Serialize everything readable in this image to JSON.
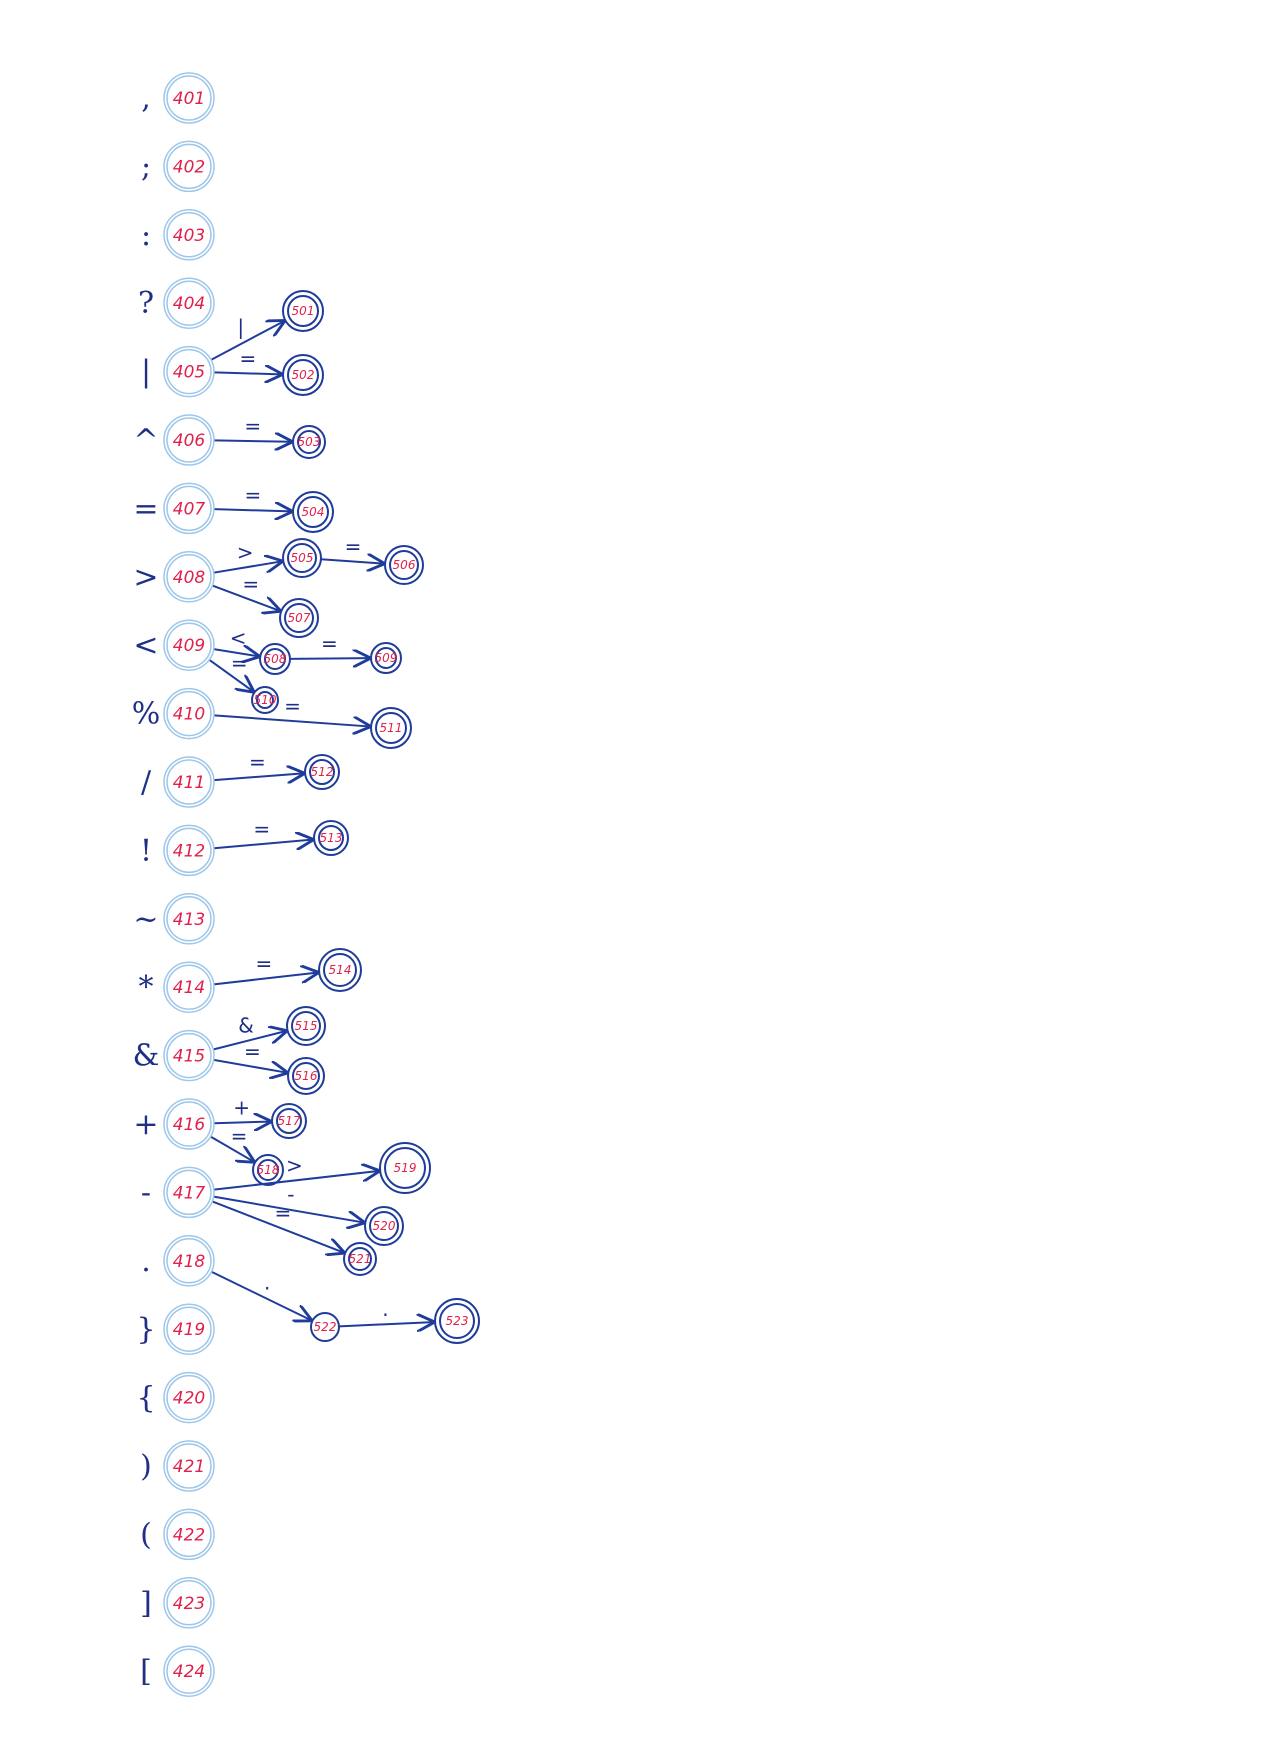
{
  "start_states": [
    {
      "symbol": ",",
      "id": "401"
    },
    {
      "symbol": ";",
      "id": "402"
    },
    {
      "symbol": ":",
      "id": "403"
    },
    {
      "symbol": "?",
      "id": "404"
    },
    {
      "symbol": "|",
      "id": "405"
    },
    {
      "symbol": "^",
      "id": "406"
    },
    {
      "symbol": "=",
      "id": "407"
    },
    {
      "symbol": ">",
      "id": "408"
    },
    {
      "symbol": "<",
      "id": "409"
    },
    {
      "symbol": "%",
      "id": "410"
    },
    {
      "symbol": "/",
      "id": "411"
    },
    {
      "symbol": "!",
      "id": "412"
    },
    {
      "symbol": "~",
      "id": "413"
    },
    {
      "symbol": "*",
      "id": "414"
    },
    {
      "symbol": "&",
      "id": "415"
    },
    {
      "symbol": "+",
      "id": "416"
    },
    {
      "symbol": "-",
      "id": "417"
    },
    {
      "symbol": ".",
      "id": "418"
    },
    {
      "symbol": "}",
      "id": "419"
    },
    {
      "symbol": "{",
      "id": "420"
    },
    {
      "symbol": ")",
      "id": "421"
    },
    {
      "symbol": "(",
      "id": "422"
    },
    {
      "symbol": "]",
      "id": "423"
    },
    {
      "symbol": "[",
      "id": "424"
    }
  ],
  "states": [
    {
      "id": "501",
      "accept": true
    },
    {
      "id": "502",
      "accept": true
    },
    {
      "id": "503",
      "accept": true
    },
    {
      "id": "504",
      "accept": true
    },
    {
      "id": "505",
      "accept": true
    },
    {
      "id": "506",
      "accept": true
    },
    {
      "id": "507",
      "accept": true
    },
    {
      "id": "508",
      "accept": true
    },
    {
      "id": "509",
      "accept": true
    },
    {
      "id": "510",
      "accept": true
    },
    {
      "id": "511",
      "accept": true
    },
    {
      "id": "512",
      "accept": true
    },
    {
      "id": "513",
      "accept": true
    },
    {
      "id": "514",
      "accept": true
    },
    {
      "id": "515",
      "accept": true
    },
    {
      "id": "516",
      "accept": true
    },
    {
      "id": "517",
      "accept": true
    },
    {
      "id": "518",
      "accept": true
    },
    {
      "id": "519",
      "accept": true
    },
    {
      "id": "520",
      "accept": true
    },
    {
      "id": "521",
      "accept": true
    },
    {
      "id": "522",
      "accept": false
    },
    {
      "id": "523",
      "accept": true
    }
  ],
  "transitions": [
    {
      "from": "405",
      "to": "501",
      "label": "|"
    },
    {
      "from": "405",
      "to": "502",
      "label": "="
    },
    {
      "from": "406",
      "to": "503",
      "label": "="
    },
    {
      "from": "407",
      "to": "504",
      "label": "="
    },
    {
      "from": "408",
      "to": "505",
      "label": ">"
    },
    {
      "from": "505",
      "to": "506",
      "label": "="
    },
    {
      "from": "408",
      "to": "507",
      "label": "="
    },
    {
      "from": "409",
      "to": "508",
      "label": "<"
    },
    {
      "from": "508",
      "to": "509",
      "label": "="
    },
    {
      "from": "409",
      "to": "510",
      "label": "="
    },
    {
      "from": "410",
      "to": "511",
      "label": "="
    },
    {
      "from": "411",
      "to": "512",
      "label": "="
    },
    {
      "from": "412",
      "to": "513",
      "label": "="
    },
    {
      "from": "414",
      "to": "514",
      "label": "="
    },
    {
      "from": "415",
      "to": "515",
      "label": "&"
    },
    {
      "from": "415",
      "to": "516",
      "label": "="
    },
    {
      "from": "416",
      "to": "517",
      "label": "+"
    },
    {
      "from": "416",
      "to": "518",
      "label": "="
    },
    {
      "from": "417",
      "to": "519",
      "label": ">"
    },
    {
      "from": "417",
      "to": "520",
      "label": "-"
    },
    {
      "from": "417",
      "to": "521",
      "label": "="
    },
    {
      "from": "418",
      "to": "522",
      "label": "."
    },
    {
      "from": "522",
      "to": "523",
      "label": "."
    }
  ],
  "colors": {
    "ink": "#1f3c9a",
    "number": "#e0214c",
    "start_circle": "#9ec7ea"
  }
}
